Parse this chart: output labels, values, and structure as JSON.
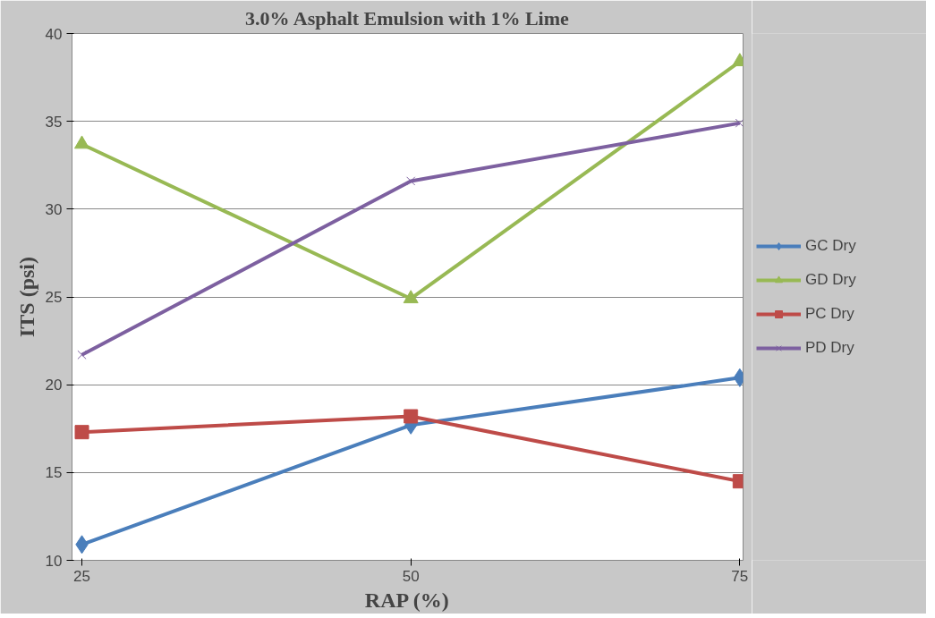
{
  "chart_data": {
    "type": "line",
    "title": "3.0% Asphalt Emulsion with 1% Lime",
    "xlabel": "RAP (%)",
    "ylabel": "ITS (psi)",
    "categories": [
      "25",
      "50",
      "75"
    ],
    "series": [
      {
        "name": "GC Dry",
        "color": "#4a7ebb",
        "marker": "diamond",
        "values": [
          10.9,
          17.7,
          20.4
        ]
      },
      {
        "name": "GD Dry",
        "color": "#98b954",
        "marker": "triangle",
        "values": [
          33.7,
          24.9,
          38.4
        ]
      },
      {
        "name": "PC Dry",
        "color": "#be4b48",
        "marker": "square",
        "values": [
          17.3,
          18.2,
          14.5
        ]
      },
      {
        "name": "PD Dry",
        "color": "#7d60a0",
        "marker": "cross",
        "values": [
          21.7,
          31.6,
          34.9
        ]
      }
    ],
    "ylim": [
      10,
      40
    ],
    "yticks": [
      10,
      15,
      20,
      25,
      30,
      35,
      40
    ],
    "grid": "y",
    "legend": "right",
    "line_style": "solid"
  }
}
